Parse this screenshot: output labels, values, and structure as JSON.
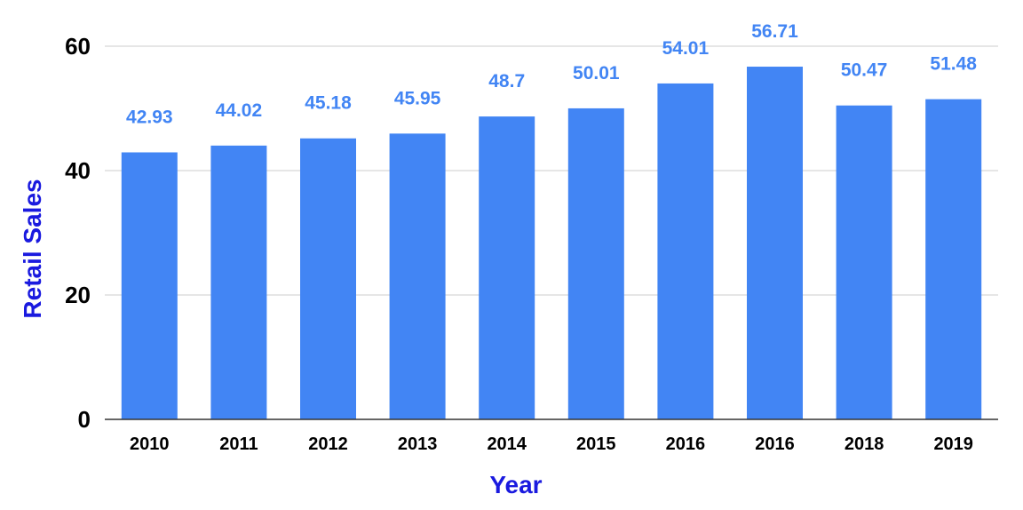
{
  "chart_data": {
    "type": "bar",
    "title": "",
    "xlabel": "Year",
    "ylabel": "Retail Sales",
    "categories": [
      "2010",
      "2011",
      "2012",
      "2013",
      "2014",
      "2015",
      "2016",
      "2016",
      "2018",
      "2019"
    ],
    "values": [
      42.93,
      44.02,
      45.18,
      45.95,
      48.7,
      50.01,
      54.01,
      56.71,
      50.47,
      51.48
    ],
    "data_labels": [
      "42.93",
      "44.02",
      "45.18",
      "45.95",
      "48.7",
      "50.01",
      "54.01",
      "56.71",
      "50.47",
      "51.48"
    ],
    "ylim": [
      0,
      60
    ],
    "yticks": [
      0,
      20,
      40,
      60
    ],
    "ytick_labels": [
      "0",
      "20",
      "40",
      "60"
    ],
    "grid": true,
    "legend": "none",
    "colors": {
      "bar": "#4285f4",
      "data_label": "#4285f4",
      "axis_title": "#1a1adf"
    }
  }
}
